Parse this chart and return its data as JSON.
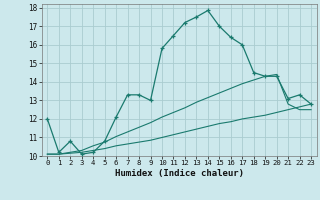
{
  "xlabel": "Humidex (Indice chaleur)",
  "background_color": "#cce8ec",
  "grid_color": "#aaccd0",
  "line_color": "#1a7a6e",
  "xlim": [
    -0.5,
    23.5
  ],
  "ylim": [
    10,
    18.2
  ],
  "yticks": [
    10,
    11,
    12,
    13,
    14,
    15,
    16,
    17,
    18
  ],
  "xticks": [
    0,
    1,
    2,
    3,
    4,
    5,
    6,
    7,
    8,
    9,
    10,
    11,
    12,
    13,
    14,
    15,
    16,
    17,
    18,
    19,
    20,
    21,
    22,
    23
  ],
  "line1_x": [
    0,
    1,
    2,
    3,
    4,
    5,
    6,
    7,
    8,
    9,
    10,
    11,
    12,
    13,
    14,
    15,
    16,
    17,
    18,
    19,
    20,
    21,
    22,
    23
  ],
  "line1_y": [
    12.0,
    10.2,
    10.8,
    10.1,
    10.2,
    10.8,
    12.1,
    13.3,
    13.3,
    13.0,
    15.8,
    16.5,
    17.2,
    17.5,
    17.85,
    17.0,
    16.4,
    16.0,
    14.5,
    14.3,
    14.3,
    13.1,
    13.3,
    12.8
  ],
  "line2_x": [
    0,
    1,
    2,
    3,
    4,
    5,
    6,
    7,
    8,
    9,
    10,
    11,
    12,
    13,
    14,
    15,
    16,
    17,
    18,
    19,
    20,
    21,
    22,
    23
  ],
  "line2_y": [
    10.1,
    10.1,
    10.15,
    10.2,
    10.3,
    10.4,
    10.55,
    10.65,
    10.75,
    10.85,
    11.0,
    11.15,
    11.3,
    11.45,
    11.6,
    11.75,
    11.85,
    12.0,
    12.1,
    12.2,
    12.35,
    12.5,
    12.65,
    12.8
  ],
  "line3_x": [
    0,
    1,
    2,
    3,
    4,
    5,
    6,
    7,
    8,
    9,
    10,
    11,
    12,
    13,
    14,
    15,
    16,
    17,
    18,
    19,
    20,
    21,
    22,
    23
  ],
  "line3_y": [
    10.1,
    10.1,
    10.2,
    10.3,
    10.55,
    10.75,
    11.05,
    11.3,
    11.55,
    11.8,
    12.1,
    12.35,
    12.6,
    12.9,
    13.15,
    13.4,
    13.65,
    13.9,
    14.1,
    14.3,
    14.4,
    12.8,
    12.5,
    12.5
  ]
}
